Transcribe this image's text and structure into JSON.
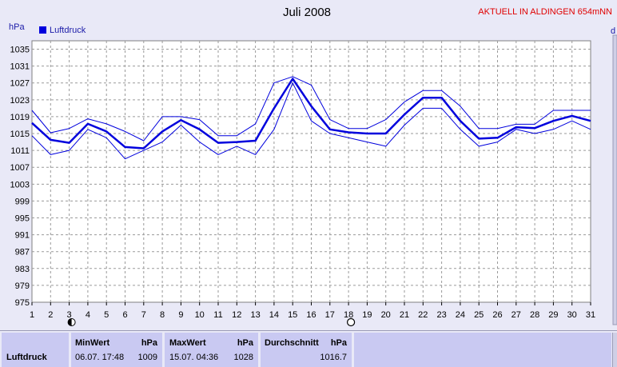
{
  "chart_data": {
    "type": "line",
    "title": "Juli 2008",
    "header_note": "AKTUELL IN ALDINGEN 654mNN",
    "ylabel": "hPa",
    "right_edge_label": "d",
    "ylim": [
      975,
      1037
    ],
    "yticks": [
      975,
      979,
      983,
      987,
      991,
      995,
      999,
      1003,
      1007,
      1011,
      1015,
      1019,
      1023,
      1027,
      1031,
      1035
    ],
    "x": [
      1,
      2,
      3,
      4,
      5,
      6,
      7,
      8,
      9,
      10,
      11,
      12,
      13,
      14,
      15,
      16,
      17,
      18,
      19,
      20,
      21,
      22,
      23,
      24,
      25,
      26,
      27,
      28,
      29,
      30,
      31
    ],
    "xlim": [
      1,
      31
    ],
    "grid": true,
    "legend_position": "top-left",
    "series": [
      {
        "name": "Luftdruck",
        "role": "mean",
        "color": "#0000dd",
        "values": [
          1017.5,
          1013.5,
          1012.8,
          1017.3,
          1015.5,
          1011.8,
          1011.5,
          1015.5,
          1018.2,
          1016,
          1012.8,
          1013,
          1013.3,
          1021,
          1028,
          1021.5,
          1016,
          1015.3,
          1015,
          1015,
          1019.5,
          1023.5,
          1023.5,
          1018,
          1013.8,
          1014,
          1016.5,
          1016.3,
          1018,
          1019.2,
          1018
        ]
      },
      {
        "role": "max",
        "color": "#0000dd",
        "values": [
          1020.5,
          1015.2,
          1016.2,
          1018.5,
          1017.3,
          1015.5,
          1013.3,
          1019,
          1019,
          1018.3,
          1014.5,
          1014.5,
          1017.3,
          1027,
          1028.5,
          1026.5,
          1018.3,
          1016.2,
          1016.2,
          1018.3,
          1022.5,
          1025.2,
          1025.2,
          1021.5,
          1016.2,
          1016.2,
          1017.2,
          1017.2,
          1020.5,
          1020.5,
          1020.5
        ]
      },
      {
        "role": "min",
        "color": "#0000dd",
        "values": [
          1014.5,
          1010,
          1011,
          1016,
          1014,
          1009,
          1011,
          1013,
          1017,
          1013,
          1010,
          1012,
          1010,
          1016,
          1027,
          1018,
          1015,
          1014,
          1013,
          1012,
          1017,
          1021,
          1021,
          1016,
          1012,
          1013,
          1016,
          1015,
          1016,
          1018,
          1016
        ]
      }
    ],
    "moon_phases": [
      {
        "day": 3,
        "phase": "new-moon"
      },
      {
        "day": 18,
        "phase": "full-moon"
      }
    ]
  },
  "legend": {
    "label": "Luftdruck",
    "color": "#0000dd"
  },
  "stats": {
    "row_label": "Luftdruck",
    "min": {
      "header": "MinWert",
      "unit": "hPa",
      "datetime": "06.07.  17:48",
      "value": "1009"
    },
    "max": {
      "header": "MaxWert",
      "unit": "hPa",
      "datetime": "15.07.  04:36",
      "value": "1028"
    },
    "avg": {
      "header": "Durchschnitt",
      "unit": "hPa",
      "value": "1016.7"
    }
  }
}
